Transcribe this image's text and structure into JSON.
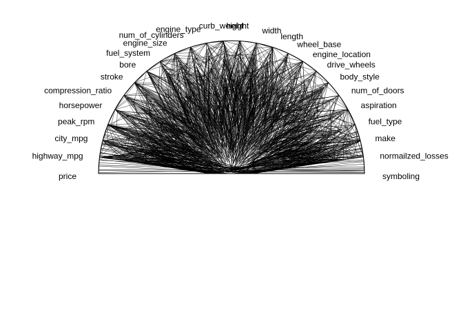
{
  "chart_data": {
    "type": "radial-parallel-coordinates",
    "title": "",
    "variables": [
      "symboling",
      "normailzed_losses",
      "make",
      "fuel_type",
      "aspiration",
      "num_of_doors",
      "body_style",
      "drive_wheels",
      "engine_location",
      "wheel_base",
      "length",
      "width",
      "height",
      "curb_weight",
      "engine_type",
      "num_of_cylinders",
      "engine_size",
      "fuel_system",
      "bore",
      "stroke",
      "compression_ratio",
      "horsepower",
      "peak_rpm",
      "city_mpg",
      "highway_mpg",
      "price"
    ],
    "angle_range_degrees": [
      0,
      180
    ],
    "line_color": "#000000",
    "record_count_drawn": 160
  }
}
